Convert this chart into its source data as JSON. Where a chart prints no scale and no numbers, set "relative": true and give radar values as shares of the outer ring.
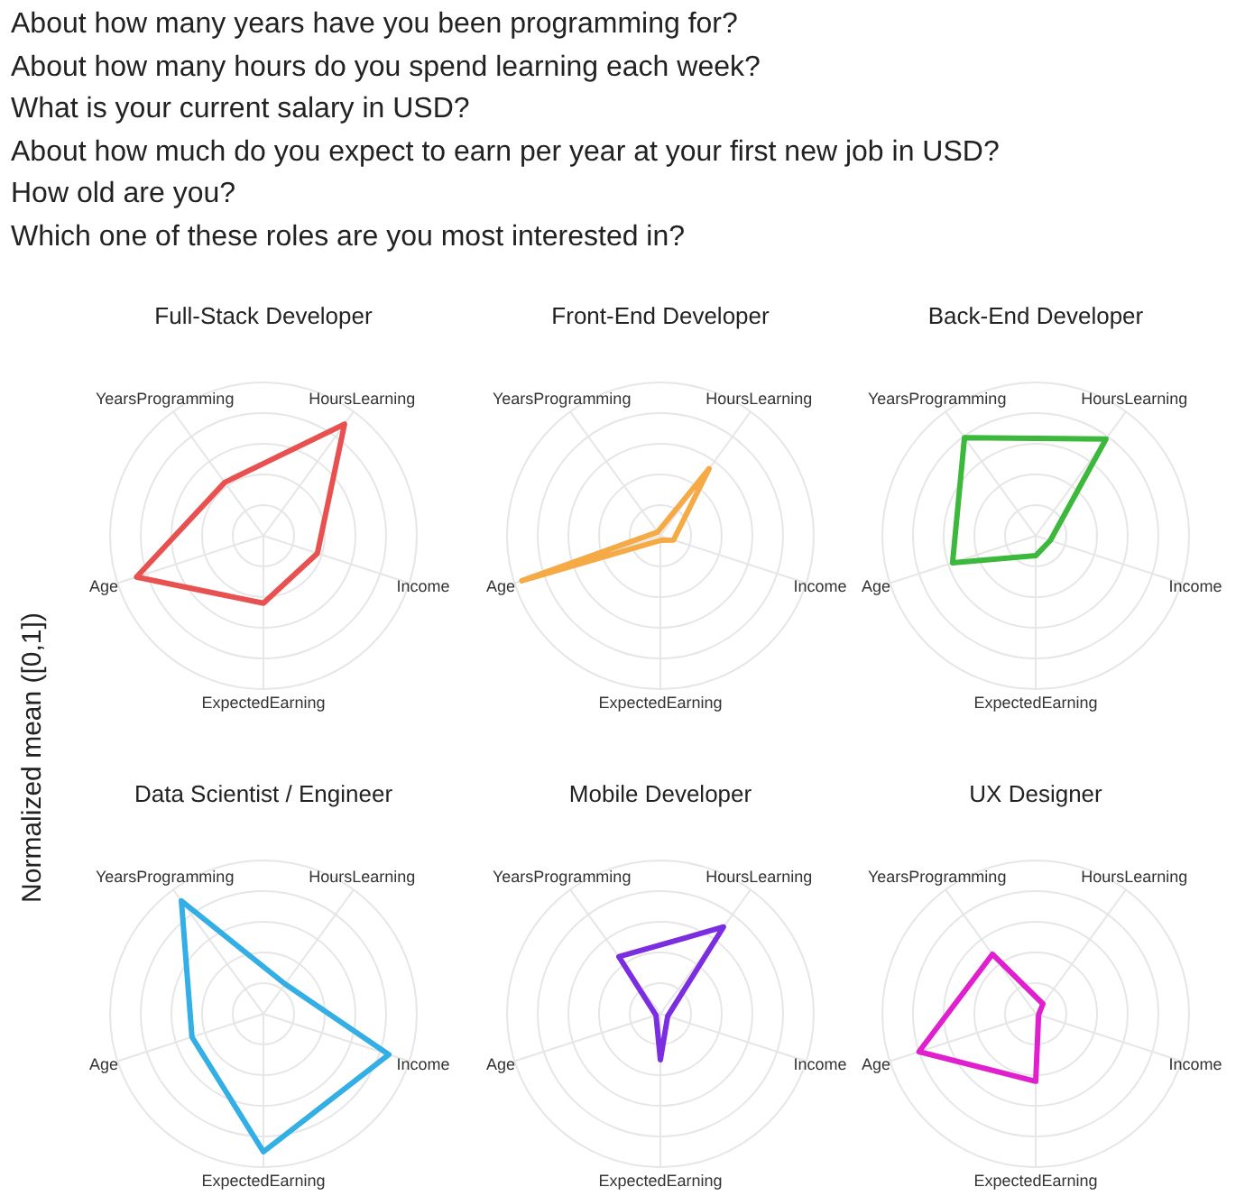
{
  "chart_data": [
    {
      "type": "radar",
      "title": "Full-Stack Developer",
      "ylabel": "Normalized mean ([0,1])",
      "annotations": [
        "About how many years have you been programming for?",
        "About how many hours do you spend learning each week?",
        "What is your current salary in USD?",
        "About how much do you expect to earn per year at your first new job in USD?",
        "How old are you?",
        "Which one of these roles are you most interested in?"
      ],
      "categories": [
        "HoursLearning",
        "Income",
        "ExpectedEarning",
        "Age",
        "YearsProgramming"
      ],
      "relative": true,
      "series": [
        {
          "color": "#e8514f",
          "values": [
            0.9,
            0.37,
            0.44,
            0.87,
            0.43
          ]
        }
      ]
    },
    {
      "type": "radar",
      "title": "Front-End Developer",
      "categories": [
        "HoursLearning",
        "Income",
        "ExpectedEarning",
        "Age",
        "YearsProgramming"
      ],
      "relative": true,
      "series": [
        {
          "color": "#f5aa45",
          "values": [
            0.54,
            0.09,
            0.03,
            0.95,
            0.03
          ]
        }
      ]
    },
    {
      "type": "radar",
      "title": "Back-End Developer",
      "categories": [
        "HoursLearning",
        "Income",
        "ExpectedEarning",
        "Age",
        "YearsProgramming"
      ],
      "relative": true,
      "series": [
        {
          "color": "#3cb83c",
          "values": [
            0.78,
            0.1,
            0.13,
            0.57,
            0.79
          ]
        }
      ]
    },
    {
      "type": "radar",
      "title": "Data Scientist / Engineer",
      "categories": [
        "HoursLearning",
        "Income",
        "ExpectedEarning",
        "Age",
        "YearsProgramming"
      ],
      "relative": true,
      "series": [
        {
          "color": "#33afe6",
          "values": [
            0.24,
            0.86,
            0.9,
            0.49,
            0.91
          ]
        }
      ]
    },
    {
      "type": "radar",
      "title": "Mobile Developer",
      "categories": [
        "HoursLearning",
        "Income",
        "ExpectedEarning",
        "Age",
        "YearsProgramming"
      ],
      "relative": true,
      "series": [
        {
          "color": "#7a2ee0",
          "values": [
            0.7,
            0.05,
            0.3,
            0.03,
            0.46
          ]
        }
      ]
    },
    {
      "type": "radar",
      "title": "UX Designer",
      "categories": [
        "HoursLearning",
        "Income",
        "ExpectedEarning",
        "Age",
        "YearsProgramming"
      ],
      "relative": true,
      "series": [
        {
          "color": "#e01fcf",
          "values": [
            0.08,
            0.02,
            0.44,
            0.8,
            0.48
          ]
        }
      ]
    }
  ]
}
